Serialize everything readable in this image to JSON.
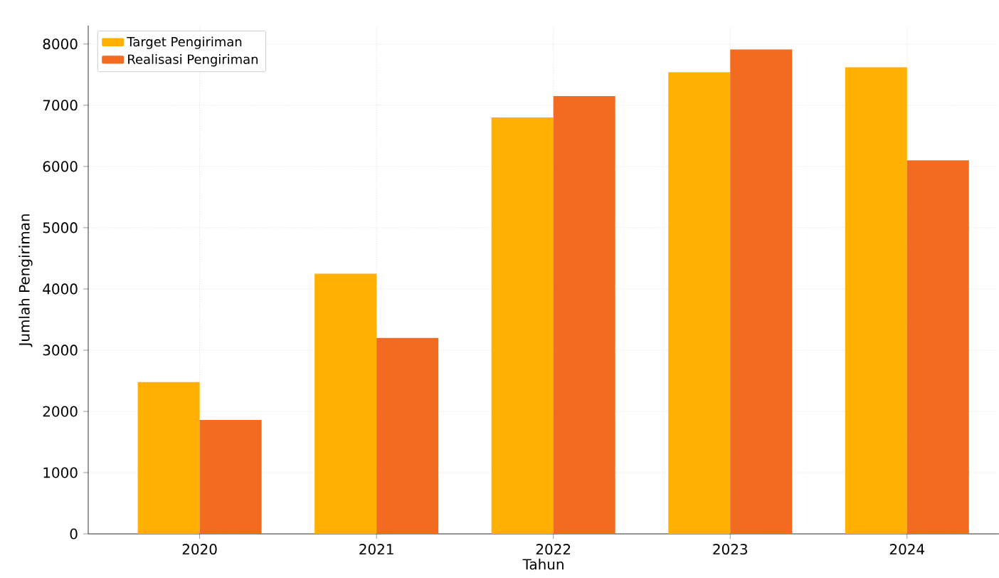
{
  "chart_data": {
    "type": "bar",
    "xlabel": "Tahun",
    "ylabel": "Jumlah Pengiriman",
    "categories": [
      "2020",
      "2021",
      "2022",
      "2023",
      "2024"
    ],
    "series": [
      {
        "name": "Target Pengiriman",
        "color": "#ffb000",
        "values": [
          2480,
          4250,
          6800,
          7540,
          7620
        ]
      },
      {
        "name": "Realisasi Pengiriman",
        "color": "#f26b21",
        "values": [
          1860,
          3200,
          7150,
          7910,
          6100
        ]
      }
    ],
    "ylim": [
      0,
      8300
    ],
    "yticks": [
      0,
      1000,
      2000,
      3000,
      4000,
      5000,
      6000,
      7000,
      8000
    ],
    "grid": true,
    "legend": "top left"
  }
}
